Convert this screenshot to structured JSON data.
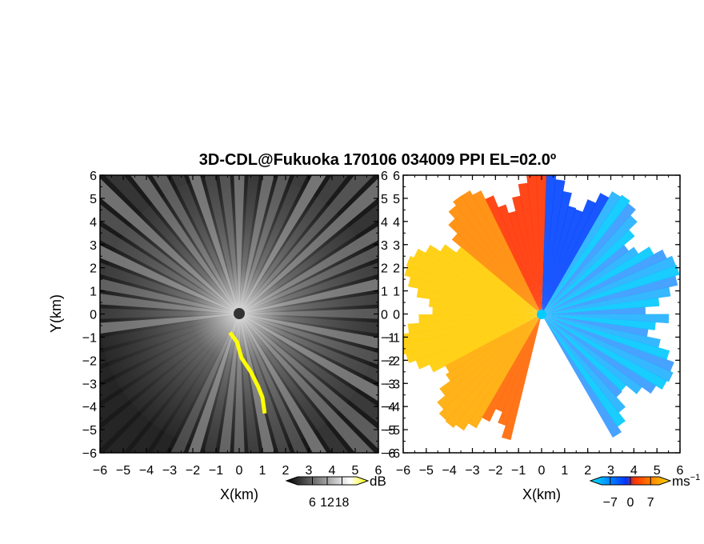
{
  "chart_data": [
    {
      "type": "heatmap",
      "title": "3D-CDL@Fukuoka 170106 034009 PPI EL=02.0º",
      "xlabel": "X(km)",
      "ylabel": "Y(km)",
      "xlim": [
        -6,
        6
      ],
      "ylim": [
        -6,
        6
      ],
      "x_ticks": [
        "-6",
        "-5",
        "-4",
        "-3",
        "-2",
        "-1",
        "0",
        "1",
        "2",
        "3",
        "4",
        "5",
        "6"
      ],
      "y_ticks": [
        "-6",
        "-5",
        "-4",
        "-3",
        "-2",
        "-1",
        "0",
        "1",
        "2",
        "3",
        "4",
        "5",
        "6"
      ],
      "colorbar": {
        "unit": "dB",
        "tick_labels": [
          "6",
          "12",
          "18"
        ],
        "ticks": [
          6,
          12,
          18
        ],
        "range": [
          0,
          24
        ],
        "colors": [
          "#000000",
          "#ffffff",
          "#ffff00"
        ]
      },
      "overlay_path": [
        [
          -0.4,
          -0.8
        ],
        [
          -0.1,
          -1.2
        ],
        [
          0.1,
          -1.9
        ],
        [
          0.5,
          -2.5
        ],
        [
          0.8,
          -3.1
        ],
        [
          1.0,
          -3.6
        ],
        [
          1.1,
          -4.3
        ]
      ],
      "overlay_color": "#ffff00",
      "grid": false
    },
    {
      "type": "heatmap",
      "xlabel": "X(km)",
      "ylabel": "",
      "xlim": [
        -6,
        6
      ],
      "ylim": [
        -6,
        6
      ],
      "x_ticks": [
        "-6",
        "-5",
        "-4",
        "-3",
        "-2",
        "-1",
        "0",
        "1",
        "2",
        "3",
        "4",
        "5",
        "6"
      ],
      "y_ticks": [
        "-6",
        "-5",
        "-4",
        "-3",
        "-2",
        "-1",
        "0",
        "1",
        "2",
        "3",
        "4",
        "5",
        "6"
      ],
      "colorbar": {
        "unit": "ms",
        "unit_exponent": "−1",
        "tick_labels": [
          "−7",
          "0",
          "7"
        ],
        "ticks": [
          -7,
          0,
          7
        ],
        "range": [
          -10,
          10
        ],
        "colors": [
          "#00e5ff",
          "#0033ff",
          "#ff3300",
          "#ffdd00"
        ]
      },
      "grid": false
    }
  ],
  "colors": {
    "background": "#ffffff",
    "echo_fill": "#1a1a1a",
    "center_marker_left": "#333333",
    "center_marker_right": "#00ccff"
  }
}
